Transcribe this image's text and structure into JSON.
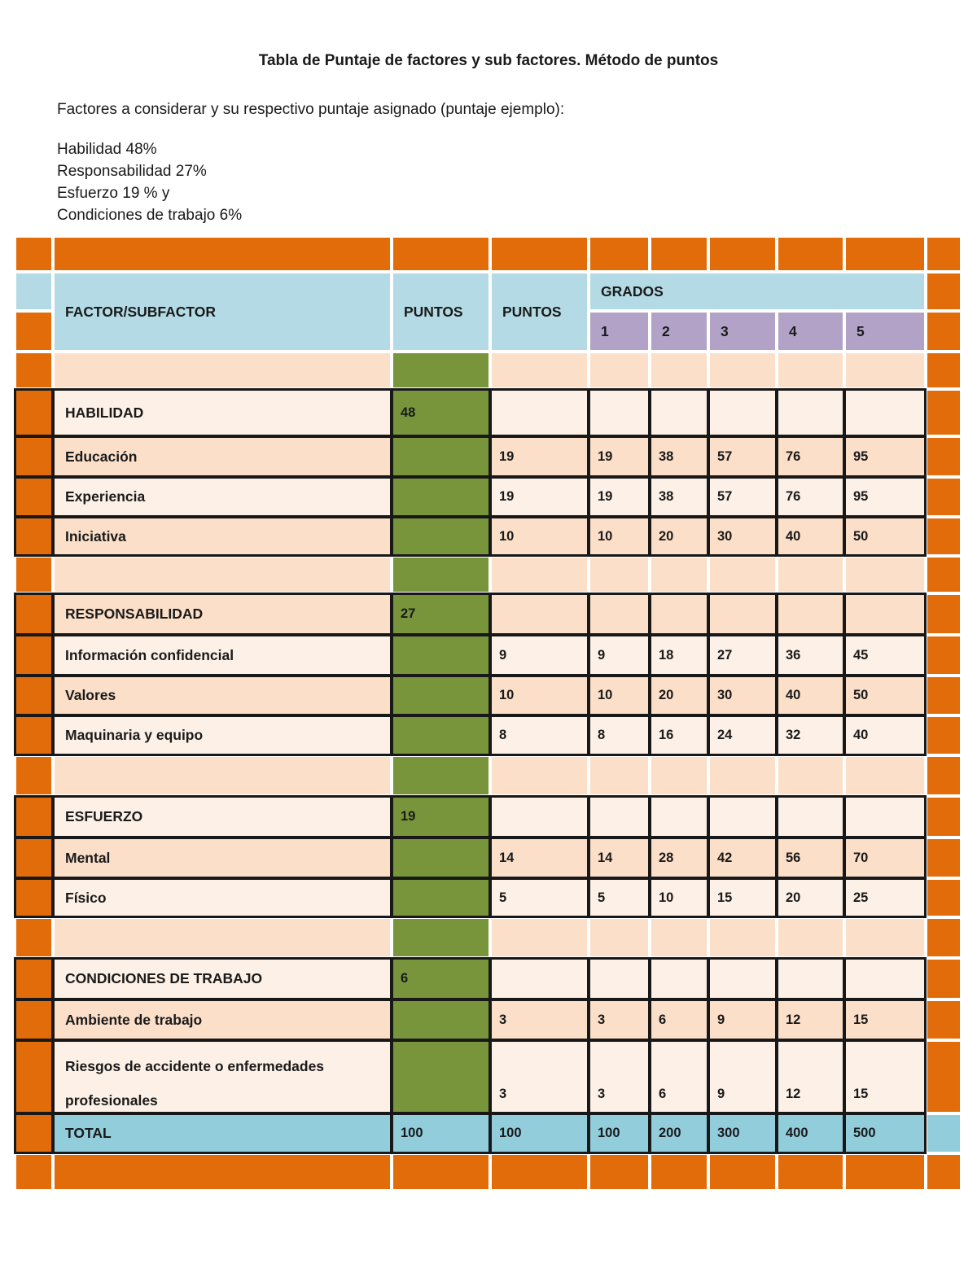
{
  "document": {
    "title": "Tabla de Puntaje de factores y sub factores. Método de puntos",
    "intro": "Factores a considerar y su respectivo puntaje asignado (puntaje ejemplo):",
    "factor_weights": [
      "Habilidad 48%",
      "Responsabilidad 27%",
      "Esfuerzo 19 % y",
      "Condiciones de trabajo 6%"
    ]
  },
  "table": {
    "header": {
      "factor_col": "FACTOR/SUBFACTOR",
      "puntos_col_1": "PUNTOS",
      "puntos_col_2": "PUNTOS",
      "grados": "GRADOS",
      "grade_numbers": [
        "1",
        "2",
        "3",
        "4",
        "5"
      ]
    },
    "sections": [
      {
        "factor": "HABILIDAD",
        "points": "48",
        "rows": [
          {
            "label": "Educación",
            "puntos": "19",
            "grades": [
              "19",
              "38",
              "57",
              "76",
              "95"
            ]
          },
          {
            "label": "Experiencia",
            "puntos": "19",
            "grades": [
              "19",
              "38",
              "57",
              "76",
              "95"
            ]
          },
          {
            "label": "Iniciativa",
            "puntos": "10",
            "grades": [
              "10",
              "20",
              "30",
              "40",
              "50"
            ]
          }
        ]
      },
      {
        "factor": "RESPONSABILIDAD",
        "points": "27",
        "rows": [
          {
            "label": "Información confidencial",
            "puntos": "9",
            "grades": [
              "9",
              "18",
              "27",
              "36",
              "45"
            ]
          },
          {
            "label": "Valores",
            "puntos": "10",
            "grades": [
              "10",
              "20",
              "30",
              "40",
              "50"
            ]
          },
          {
            "label": "Maquinaria y equipo",
            "puntos": "8",
            "grades": [
              "8",
              "16",
              "24",
              "32",
              "40"
            ]
          }
        ]
      },
      {
        "factor": "ESFUERZO",
        "points": "19",
        "rows": [
          {
            "label": "Mental",
            "puntos": "14",
            "grades": [
              "14",
              "28",
              "42",
              "56",
              "70"
            ]
          },
          {
            "label": "Físico",
            "puntos": "5",
            "grades": [
              "5",
              "10",
              "15",
              "20",
              "25"
            ]
          }
        ]
      },
      {
        "factor": "CONDICIONES DE TRABAJO",
        "points": "6",
        "rows": [
          {
            "label": "Ambiente de trabajo",
            "puntos": "3",
            "grades": [
              "3",
              "6",
              "9",
              "12",
              "15"
            ]
          },
          {
            "label": "Riesgos de accidente o enfermedades profesionales",
            "puntos": "3",
            "grades": [
              "3",
              "6",
              "9",
              "12",
              "15"
            ]
          }
        ]
      }
    ],
    "total": {
      "label": "TOTAL",
      "puntos_1": "100",
      "puntos_2": "100",
      "grades": [
        "100",
        "200",
        "300",
        "400",
        "500"
      ]
    }
  },
  "colors": {
    "orange": "#E36C0A",
    "header_blue": "#B4DBE5",
    "purple": "#B2A2C7",
    "green": "#78953B",
    "row_light": "#FDF0E6",
    "row_dark": "#FBDFC9",
    "total_blue": "#92CDDC",
    "border_black": "#181818"
  }
}
